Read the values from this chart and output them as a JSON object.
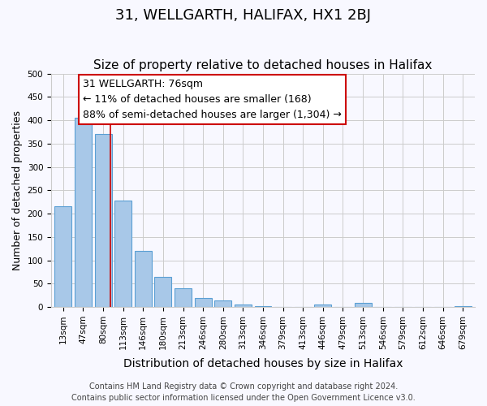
{
  "title": "31, WELLGARTH, HALIFAX, HX1 2BJ",
  "subtitle": "Size of property relative to detached houses in Halifax",
  "xlabel": "Distribution of detached houses by size in Halifax",
  "ylabel": "Number of detached properties",
  "bar_labels": [
    "13sqm",
    "47sqm",
    "80sqm",
    "113sqm",
    "146sqm",
    "180sqm",
    "213sqm",
    "246sqm",
    "280sqm",
    "313sqm",
    "346sqm",
    "379sqm",
    "413sqm",
    "446sqm",
    "479sqm",
    "513sqm",
    "546sqm",
    "579sqm",
    "612sqm",
    "646sqm",
    "679sqm"
  ],
  "bar_values": [
    215,
    405,
    370,
    228,
    120,
    65,
    40,
    20,
    14,
    5,
    2,
    0,
    0,
    5,
    0,
    8,
    0,
    0,
    0,
    0,
    2
  ],
  "bar_color": "#a8c8e8",
  "bar_edge_color": "#5a9fd4",
  "property_line_x": 2.35,
  "property_line_color": "#cc0000",
  "annotation_line1": "31 WELLGARTH: 76sqm",
  "annotation_line2": "← 11% of detached houses are smaller (168)",
  "annotation_line3": "88% of semi-detached houses are larger (1,304) →",
  "annotation_box_color": "#ffffff",
  "annotation_box_edge": "#cc0000",
  "ylim": [
    0,
    500
  ],
  "yticks": [
    0,
    50,
    100,
    150,
    200,
    250,
    300,
    350,
    400,
    450,
    500
  ],
  "grid_color": "#cccccc",
  "bg_color": "#f8f8ff",
  "footer_line1": "Contains HM Land Registry data © Crown copyright and database right 2024.",
  "footer_line2": "Contains public sector information licensed under the Open Government Licence v3.0.",
  "title_fontsize": 13,
  "subtitle_fontsize": 11,
  "xlabel_fontsize": 10,
  "ylabel_fontsize": 9,
  "tick_fontsize": 7.5,
  "annotation_fontsize": 9,
  "footer_fontsize": 7
}
